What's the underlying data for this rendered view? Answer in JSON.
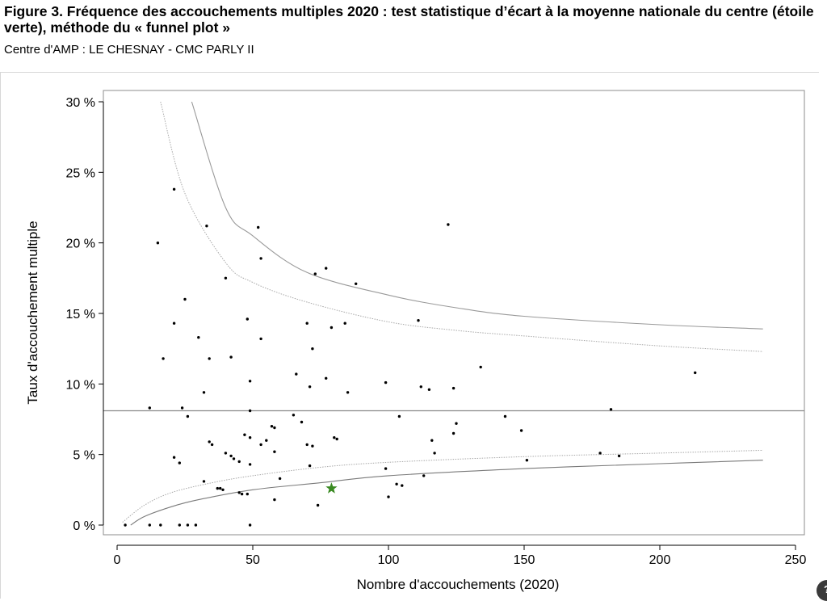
{
  "header": {
    "title": "Figure 3. Fréquence des accouchements multiples 2020 : test statistique d’écart à la moyenne nationale du centre (étoile verte), méthode du « funnel plot »",
    "subtitle": "Centre d'AMP : LE CHESNAY - CMC PARLY II"
  },
  "chart_data": {
    "type": "scatter",
    "xlabel": "Nombre d'accouchements (2020)",
    "ylabel": "Taux d'accouchement multiple",
    "xlim": [
      0,
      250
    ],
    "ylim": [
      0,
      30
    ],
    "x_ticks": [
      0,
      50,
      100,
      150,
      200,
      250
    ],
    "y_ticks": [
      0,
      5,
      10,
      15,
      20,
      25,
      30
    ],
    "x_tick_labels": [
      "0",
      "50",
      "100",
      "150",
      "200",
      "250"
    ],
    "y_tick_labels": [
      "0 %",
      "5 %",
      "10 %",
      "15 %",
      "20 %",
      "25 %",
      "30 %"
    ],
    "grid": false,
    "national_mean": 8.1,
    "limit_curves": {
      "outer_upper": [
        [
          27.5,
          30
        ],
        [
          40,
          22.5
        ],
        [
          50,
          20.5
        ],
        [
          70,
          17.9
        ],
        [
          100,
          16.3
        ],
        [
          125,
          15.4
        ],
        [
          150,
          14.8
        ],
        [
          200,
          14.2
        ],
        [
          238,
          13.9
        ]
      ],
      "inner_upper": [
        [
          16,
          30
        ],
        [
          25,
          23.5
        ],
        [
          40,
          18.6
        ],
        [
          50,
          17.2
        ],
        [
          70,
          15.8
        ],
        [
          100,
          14.4
        ],
        [
          125,
          13.8
        ],
        [
          150,
          13.4
        ],
        [
          200,
          12.7
        ],
        [
          238,
          12.3
        ]
      ],
      "inner_lower": [
        [
          2,
          0.2
        ],
        [
          10,
          1.4
        ],
        [
          20,
          2.3
        ],
        [
          35,
          3.0
        ],
        [
          50,
          3.5
        ],
        [
          75,
          4.1
        ],
        [
          100,
          4.45
        ],
        [
          150,
          4.85
        ],
        [
          200,
          5.1
        ],
        [
          238,
          5.3
        ]
      ],
      "outer_lower": [
        [
          5,
          0
        ],
        [
          10,
          0.6
        ],
        [
          20,
          1.3
        ],
        [
          30,
          1.8
        ],
        [
          50,
          2.5
        ],
        [
          75,
          3.0
        ],
        [
          100,
          3.5
        ],
        [
          150,
          4.0
        ],
        [
          200,
          4.35
        ],
        [
          238,
          4.6
        ]
      ]
    },
    "centre_point": {
      "x": 79,
      "y": 2.6,
      "color": "#3a8a22"
    },
    "points": [
      [
        3,
        0
      ],
      [
        12,
        0
      ],
      [
        16,
        0
      ],
      [
        23,
        0
      ],
      [
        26,
        0
      ],
      [
        29,
        0
      ],
      [
        49,
        0
      ],
      [
        12,
        8.3
      ],
      [
        15,
        20.0
      ],
      [
        17,
        11.8
      ],
      [
        21,
        23.8
      ],
      [
        21,
        14.3
      ],
      [
        21,
        4.8
      ],
      [
        23,
        4.4
      ],
      [
        24,
        8.3
      ],
      [
        25,
        16.0
      ],
      [
        26,
        7.7
      ],
      [
        30,
        13.3
      ],
      [
        32,
        9.4
      ],
      [
        33,
        21.2
      ],
      [
        34,
        11.8
      ],
      [
        34,
        5.9
      ],
      [
        35,
        5.7
      ],
      [
        32,
        3.1
      ],
      [
        37,
        2.6
      ],
      [
        38,
        2.6
      ],
      [
        39,
        2.5
      ],
      [
        40,
        17.5
      ],
      [
        40,
        5.1
      ],
      [
        42,
        11.9
      ],
      [
        42,
        4.9
      ],
      [
        43,
        4.7
      ],
      [
        45,
        4.5
      ],
      [
        45,
        2.3
      ],
      [
        46,
        2.2
      ],
      [
        47,
        6.4
      ],
      [
        48,
        14.6
      ],
      [
        48,
        2.2
      ],
      [
        49,
        10.2
      ],
      [
        49,
        8.1
      ],
      [
        49,
        6.2
      ],
      [
        49,
        4.3
      ],
      [
        52,
        21.1
      ],
      [
        53,
        18.9
      ],
      [
        53,
        13.2
      ],
      [
        53,
        5.7
      ],
      [
        55,
        6.0
      ],
      [
        57,
        7.0
      ],
      [
        58,
        6.9
      ],
      [
        58,
        5.2
      ],
      [
        58,
        1.8
      ],
      [
        60,
        3.3
      ],
      [
        65,
        7.8
      ],
      [
        66,
        10.7
      ],
      [
        68,
        7.3
      ],
      [
        70,
        14.3
      ],
      [
        70,
        5.7
      ],
      [
        71,
        9.8
      ],
      [
        71,
        4.2
      ],
      [
        72,
        12.5
      ],
      [
        72,
        5.6
      ],
      [
        73,
        17.8
      ],
      [
        74,
        1.4
      ],
      [
        77,
        18.2
      ],
      [
        77,
        10.4
      ],
      [
        79,
        14.0
      ],
      [
        80,
        6.2
      ],
      [
        81,
        6.1
      ],
      [
        84,
        14.3
      ],
      [
        85,
        9.4
      ],
      [
        88,
        17.1
      ],
      [
        99,
        10.1
      ],
      [
        99,
        4.0
      ],
      [
        100,
        2.0
      ],
      [
        103,
        2.9
      ],
      [
        104,
        7.7
      ],
      [
        105,
        2.8
      ],
      [
        111,
        14.5
      ],
      [
        112,
        9.8
      ],
      [
        113,
        3.5
      ],
      [
        115,
        9.6
      ],
      [
        116,
        6.0
      ],
      [
        117,
        5.1
      ],
      [
        122,
        21.3
      ],
      [
        124,
        9.7
      ],
      [
        124,
        6.5
      ],
      [
        125,
        7.2
      ],
      [
        134,
        11.2
      ],
      [
        143,
        7.7
      ],
      [
        149,
        6.7
      ],
      [
        151,
        4.6
      ],
      [
        178,
        5.1
      ],
      [
        182,
        8.2
      ],
      [
        185,
        4.9
      ],
      [
        213,
        10.8
      ]
    ]
  }
}
